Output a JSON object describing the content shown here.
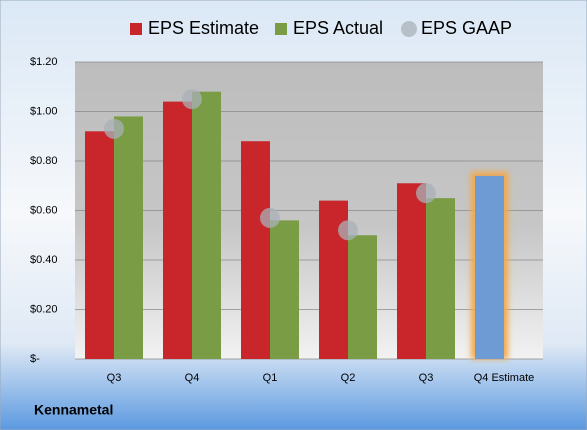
{
  "chart_data": {
    "type": "bar",
    "categories": [
      "Q3",
      "Q4",
      "Q1",
      "Q2",
      "Q3",
      "Q4 Estimate"
    ],
    "series": [
      {
        "name": "EPS Estimate",
        "color": "#c8262a",
        "values": [
          0.92,
          1.04,
          0.88,
          0.64,
          0.71,
          0.74
        ],
        "point_colors": [
          "#c8262a",
          "#c8262a",
          "#c8262a",
          "#c8262a",
          "#c8262a",
          "#6f9bd4"
        ]
      },
      {
        "name": "EPS Actual",
        "color": "#7a9c45",
        "values": [
          0.98,
          1.08,
          0.56,
          0.5,
          0.65,
          null
        ]
      },
      {
        "name": "EPS GAAP",
        "color": "#a9b0b8",
        "values": [
          0.93,
          1.05,
          0.57,
          0.52,
          0.67,
          null
        ]
      }
    ],
    "ylim": [
      0,
      1.2
    ],
    "yticks": [
      {
        "value": 0,
        "label": "$-"
      },
      {
        "value": 0.2,
        "label": "$0.20"
      },
      {
        "value": 0.4,
        "label": "$0.40"
      },
      {
        "value": 0.6,
        "label": "$0.60"
      },
      {
        "value": 0.8,
        "label": "$0.80"
      },
      {
        "value": 1.0,
        "label": "$1.00"
      },
      {
        "value": 1.2,
        "label": "$1.20"
      }
    ],
    "grid": true,
    "legend": "top",
    "footer": "Kennametal"
  }
}
